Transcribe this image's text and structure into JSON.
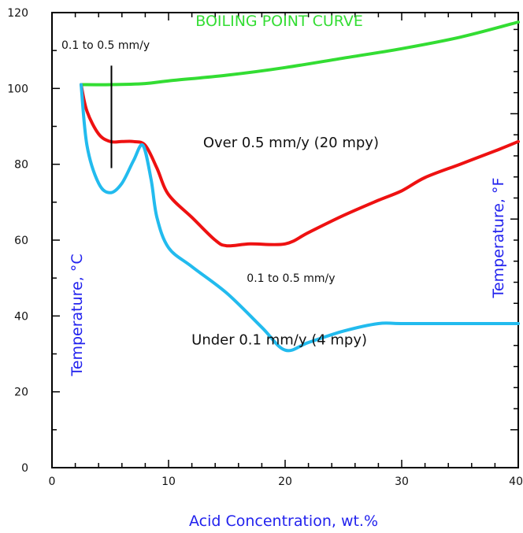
{
  "chart_data": {
    "type": "line",
    "xlabel": "Acid Concentration, wt.%",
    "ylabel_left": "Temperature, °C",
    "ylabel_right": "Temperature, °F",
    "xlim": [
      0,
      40
    ],
    "ylim": [
      0,
      120
    ],
    "x_ticks": [
      "0",
      "10",
      "20",
      "30",
      "40"
    ],
    "y_ticks": [
      "0",
      "20",
      "40",
      "60",
      "80",
      "100",
      "120"
    ],
    "grid": false,
    "series": [
      {
        "name": "BOILING POINT CURVE",
        "color": "#33dd33",
        "x": [
          2.5,
          5,
          8,
          10,
          15,
          20,
          25,
          30,
          35,
          40
        ],
        "y": [
          101,
          101,
          101.3,
          102,
          103.5,
          105.5,
          108,
          110.5,
          113.5,
          117.5
        ]
      },
      {
        "name": "",
        "color": "#ee1111",
        "x": [
          2.5,
          3,
          4,
          5,
          6,
          7,
          8,
          9,
          10,
          12,
          14,
          15,
          17,
          20,
          22,
          25,
          28,
          30,
          32,
          35,
          38,
          40
        ],
        "y": [
          101,
          94,
          88,
          86,
          86,
          86,
          85,
          79,
          72,
          66,
          60,
          58.5,
          59,
          59,
          62,
          66.5,
          70.5,
          73,
          76.5,
          80,
          83.5,
          86
        ]
      },
      {
        "name": "",
        "color": "#22bbee",
        "x": [
          2.5,
          3,
          4,
          5,
          6,
          7,
          7.8,
          8.5,
          9,
          10,
          12,
          15,
          18,
          20,
          22,
          25,
          28,
          30,
          35,
          40
        ],
        "y": [
          101,
          85,
          75,
          72.5,
          75,
          81,
          85,
          76,
          66,
          58,
          53,
          46,
          37,
          31,
          33,
          36,
          38,
          38,
          38,
          38
        ]
      }
    ],
    "annotations": [
      {
        "text": "BOILING POINT CURVE",
        "x": 19.5,
        "y": 116.5,
        "color": "#33dd33"
      },
      {
        "text": "0.1 to 0.5 mm/y",
        "x": 4.6,
        "y": 110.5
      },
      {
        "text": "Over 0.5 mm/y (20 mpy)",
        "x": 20.5,
        "y": 84.5
      },
      {
        "text": "0.1 to 0.5 mm/y",
        "x": 20.5,
        "y": 49
      },
      {
        "text": "Under 0.1 mm/y (4 mpy)",
        "x": 19.5,
        "y": 32.5
      }
    ],
    "pointer_line": {
      "x": 5.1,
      "y1": 106,
      "y2": 79
    },
    "axis_label_color": "#2222ee"
  }
}
